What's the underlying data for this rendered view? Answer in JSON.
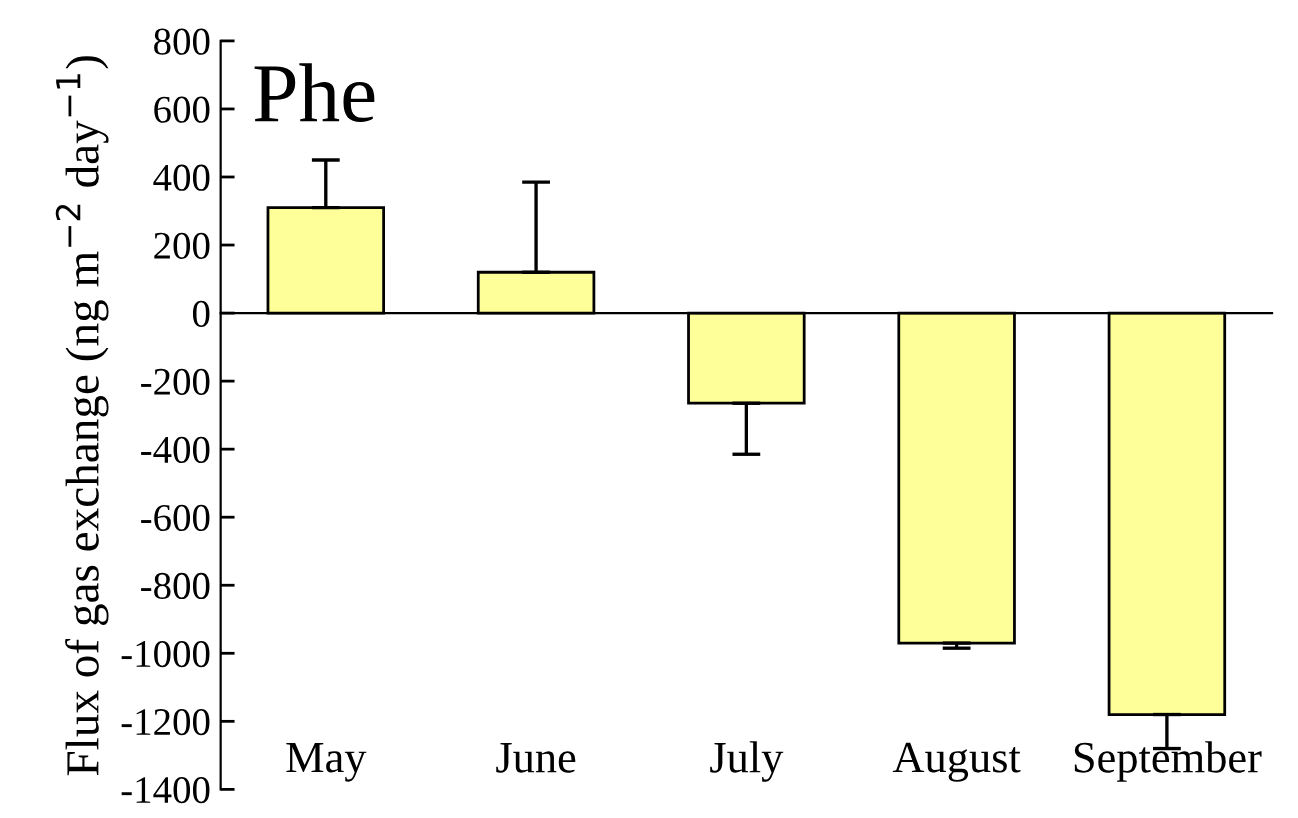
{
  "chart_data": {
    "type": "bar",
    "title": "Phe",
    "ylabel": "Flux of gas exchange (ng m$^{−2}$ day$^{−1}$)",
    "categories": [
      "May",
      "June",
      "July",
      "August",
      "September"
    ],
    "values": [
      310,
      120,
      -265,
      -970,
      -1180
    ],
    "errors": [
      [
        310,
        450
      ],
      [
        120,
        385
      ],
      [
        -415,
        -265
      ],
      [
        -985,
        -970
      ],
      [
        -1280,
        -1180
      ]
    ],
    "color": "#ffff99",
    "ylim": [
      -1400,
      800
    ],
    "yticks": [
      -1400,
      -1200,
      -1000,
      -800,
      -600,
      -400,
      -200,
      0,
      200,
      400,
      600,
      800
    ]
  }
}
